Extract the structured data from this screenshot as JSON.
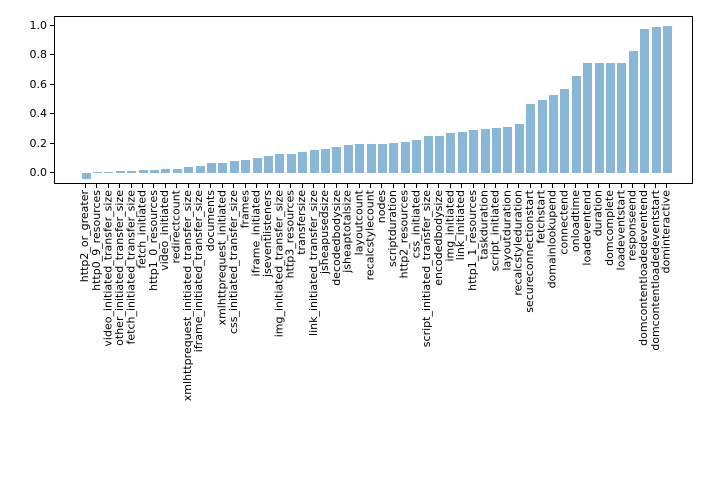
{
  "figure": {
    "background_color": "#ffffff",
    "plot_border_color": "#000000"
  },
  "chart_data": {
    "type": "bar",
    "title": "",
    "xlabel": "",
    "ylabel": "",
    "bar_color": "#89b7d8",
    "axis_color": "#000000",
    "grid": false,
    "legend": false,
    "ylim": [
      -0.09,
      1.06
    ],
    "yticks": [
      0.0,
      0.2,
      0.4,
      0.6,
      0.8,
      1.0
    ],
    "ytick_labels": [
      "0.0",
      "0.2",
      "0.4",
      "0.6",
      "0.8",
      "1.0"
    ],
    "categories": [
      "http2_or_greater",
      "http0_9_resources",
      "video_initiated_transfer_size",
      "other_initiated_transfer_size",
      "fetch_initiated_transfer_size",
      "fetch_initiated",
      "http1_0_resources",
      "video_initiated",
      "redirectcount",
      "xmlhttprequest_initiated_transfer_size",
      "iframe_initiated_transfer_size",
      "documents",
      "xmlhttprequest_initiated",
      "css_initiated_transfer_size",
      "frames",
      "iframe_initiated",
      "jseventlisteners",
      "img_initiated_transfer_size",
      "http3_resources",
      "transfersize",
      "link_initiated_transfer_size",
      "jsheapusedsize",
      "decodedbodysize",
      "jsheaptotalsize",
      "layoutcount",
      "recalcstylecount",
      "nodes",
      "scriptduration",
      "http2_resources",
      "css_initiated",
      "script_initiated_transfer_size",
      "encodedbodysize",
      "img_initiated",
      "link_initiated",
      "http1_1_resources",
      "taskduration",
      "script_initiated",
      "layoutduration",
      "recalcstyleduration",
      "secureconnectionstart",
      "fetchstart",
      "domainlookupend",
      "connectend",
      "onloadtime",
      "loadeventend",
      "duration",
      "domcomplete",
      "loadeventstart",
      "responseend",
      "domcontentloadedeventend",
      "domcontentloadedeventstart",
      "dominteractive"
    ],
    "values": [
      -0.04,
      0.005,
      0.007,
      0.015,
      0.017,
      0.02,
      0.022,
      0.025,
      0.03,
      0.04,
      0.045,
      0.065,
      0.07,
      0.085,
      0.09,
      0.105,
      0.115,
      0.13,
      0.13,
      0.145,
      0.155,
      0.165,
      0.18,
      0.19,
      0.195,
      0.2,
      0.2,
      0.205,
      0.21,
      0.225,
      0.25,
      0.25,
      0.27,
      0.28,
      0.29,
      0.3,
      0.305,
      0.315,
      0.33,
      0.47,
      0.5,
      0.53,
      0.57,
      0.66,
      0.75,
      0.75,
      0.75,
      0.75,
      0.83,
      0.98,
      0.99,
      1.0
    ]
  }
}
